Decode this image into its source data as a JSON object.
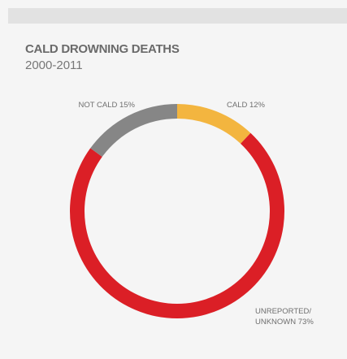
{
  "chart_data": {
    "type": "pie",
    "title": "CALD DROWNING DEATHS",
    "subtitle": "2000-2011",
    "donut": true,
    "start_angle_deg": 0,
    "direction": "clockwise",
    "slices": [
      {
        "name": "CALD",
        "value": 12,
        "color": "#f3b53f",
        "label_lines": [
          "CALD 12%"
        ]
      },
      {
        "name": "UNREPORTED/ UNKNOWN",
        "value": 73,
        "color": "#db1f26",
        "label_lines": [
          "UNREPORTED/",
          "UNKNOWN 73%"
        ]
      },
      {
        "name": "NOT CALD",
        "value": 15,
        "color": "#868686",
        "label_lines": [
          "NOT CALD 15%"
        ]
      }
    ]
  },
  "colors": {
    "background": "#f5f5f5",
    "top_bar": "#e2e2e2",
    "text": "#6f6f6f"
  }
}
